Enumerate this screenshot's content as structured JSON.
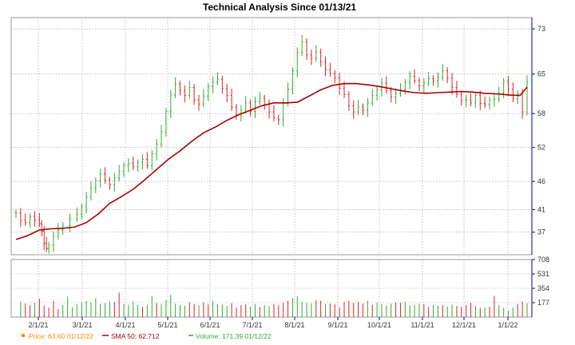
{
  "chart_data": {
    "type": "bar",
    "title": "Technical Analysis Since 01/13/21",
    "x_ticks": [
      "2/1/21",
      "3/1/21",
      "4/1/21",
      "5/1/21",
      "6/1/21",
      "7/1/21",
      "8/1/21",
      "9/1/21",
      "10/1/21",
      "11/1/21",
      "12/1/21",
      "1/1/22"
    ],
    "price_axis": {
      "ticks": [
        "73",
        "65",
        "58",
        "52",
        "46",
        "41",
        "37"
      ],
      "ylim": [
        33,
        75
      ]
    },
    "volume_axis": {
      "ticks": [
        "708",
        "531",
        "354",
        "177"
      ],
      "ylim": [
        0,
        708
      ]
    },
    "colors": {
      "up": "#33aa33",
      "down": "#dd2222",
      "sma": "#aa0000",
      "grid": "#999999",
      "axis": "#0000aa",
      "price_marker": "#ff8800"
    },
    "legend": [
      {
        "label": "Price: 63.60 01/12/22",
        "marker": "square",
        "color": "#ff8800"
      },
      {
        "label": "SMA 50: 62.712",
        "marker": "line",
        "color": "#aa0000"
      },
      {
        "label": "Volume: 171.39 01/12/22",
        "marker": "line",
        "color": "#33aa33"
      }
    ],
    "series": [
      {
        "name": "Price",
        "type": "ohlc",
        "points": [
          [
            0,
            40.4
          ],
          [
            2,
            39.1
          ],
          [
            4,
            38.7
          ],
          [
            6,
            39.8
          ],
          [
            8,
            39.2
          ],
          [
            10,
            38.5
          ],
          [
            11,
            37.2
          ],
          [
            12,
            35.0
          ],
          [
            13,
            34.1
          ],
          [
            14,
            34.7
          ],
          [
            16,
            36.3
          ],
          [
            18,
            37.4
          ],
          [
            20,
            38.2
          ],
          [
            23,
            39.4
          ],
          [
            26,
            40.2
          ],
          [
            28,
            41.5
          ],
          [
            30,
            43.2
          ],
          [
            32,
            44.8
          ],
          [
            34,
            46.1
          ],
          [
            36,
            47.3
          ],
          [
            38,
            46.2
          ],
          [
            40,
            45.4
          ],
          [
            42,
            46.6
          ],
          [
            44,
            47.7
          ],
          [
            46,
            48.8
          ],
          [
            48,
            49.2
          ],
          [
            50,
            48.6
          ],
          [
            52,
            49.3
          ],
          [
            54,
            49.9
          ],
          [
            56,
            48.8
          ],
          [
            58,
            50.9
          ],
          [
            60,
            52.6
          ],
          [
            62,
            54.8
          ],
          [
            64,
            58.4
          ],
          [
            66,
            61.3
          ],
          [
            68,
            63.2
          ],
          [
            70,
            62.1
          ],
          [
            72,
            61.2
          ],
          [
            74,
            62.6
          ],
          [
            76,
            60.4
          ],
          [
            78,
            59.7
          ],
          [
            80,
            61.1
          ],
          [
            82,
            62.8
          ],
          [
            84,
            63.6
          ],
          [
            86,
            64.1
          ],
          [
            88,
            62.4
          ],
          [
            90,
            61.2
          ],
          [
            92,
            59.1
          ],
          [
            94,
            57.8
          ],
          [
            96,
            58.6
          ],
          [
            98,
            59.9
          ],
          [
            100,
            58.4
          ],
          [
            102,
            60.1
          ],
          [
            104,
            60.7
          ],
          [
            106,
            59.6
          ],
          [
            108,
            58.3
          ],
          [
            110,
            57.2
          ],
          [
            112,
            56.9
          ],
          [
            114,
            59.8
          ],
          [
            116,
            62.3
          ],
          [
            118,
            65.6
          ],
          [
            120,
            68.8
          ],
          [
            122,
            70.7
          ],
          [
            124,
            68.4
          ],
          [
            126,
            67.8
          ],
          [
            128,
            68.9
          ],
          [
            130,
            67.2
          ],
          [
            132,
            65.8
          ],
          [
            134,
            65.1
          ],
          [
            136,
            64.3
          ],
          [
            138,
            62.5
          ],
          [
            140,
            61.4
          ],
          [
            142,
            59.4
          ],
          [
            144,
            58.3
          ],
          [
            146,
            59.2
          ],
          [
            148,
            58.6
          ],
          [
            150,
            59.9
          ],
          [
            152,
            61.2
          ],
          [
            154,
            62.2
          ],
          [
            156,
            63.4
          ],
          [
            158,
            62.1
          ],
          [
            160,
            60.9
          ],
          [
            162,
            61.6
          ],
          [
            164,
            62.2
          ],
          [
            166,
            63.5
          ],
          [
            168,
            64.6
          ],
          [
            170,
            63.8
          ],
          [
            172,
            62.9
          ],
          [
            174,
            63.4
          ],
          [
            176,
            64.2
          ],
          [
            178,
            63.8
          ],
          [
            180,
            64.4
          ],
          [
            182,
            65.6
          ],
          [
            184,
            64.3
          ],
          [
            186,
            62.6
          ],
          [
            188,
            61.4
          ],
          [
            190,
            60.3
          ],
          [
            192,
            60.4
          ],
          [
            194,
            59.9
          ],
          [
            196,
            61.2
          ],
          [
            198,
            59.8
          ],
          [
            200,
            59.6
          ],
          [
            202,
            60.4
          ],
          [
            204,
            60.6
          ],
          [
            206,
            61.6
          ],
          [
            208,
            63.7
          ],
          [
            210,
            62.3
          ],
          [
            212,
            60.6
          ],
          [
            214,
            61.5
          ],
          [
            216,
            58.3
          ],
          [
            218,
            63.6
          ]
        ]
      },
      {
        "name": "SMA 50",
        "type": "line",
        "values": [
          [
            0,
            35.7
          ],
          [
            5,
            36.4
          ],
          [
            10,
            37.4
          ],
          [
            15,
            37.6
          ],
          [
            20,
            37.7
          ],
          [
            25,
            37.9
          ],
          [
            30,
            38.7
          ],
          [
            35,
            40.2
          ],
          [
            40,
            42.1
          ],
          [
            45,
            43.3
          ],
          [
            50,
            44.6
          ],
          [
            55,
            46.3
          ],
          [
            60,
            48.1
          ],
          [
            65,
            49.9
          ],
          [
            70,
            51.4
          ],
          [
            75,
            53.1
          ],
          [
            80,
            54.6
          ],
          [
            85,
            55.6
          ],
          [
            90,
            56.8
          ],
          [
            95,
            57.8
          ],
          [
            100,
            58.6
          ],
          [
            105,
            59.4
          ],
          [
            110,
            59.9
          ],
          [
            115,
            59.9
          ],
          [
            120,
            60.0
          ],
          [
            125,
            61.1
          ],
          [
            130,
            62.2
          ],
          [
            135,
            63.0
          ],
          [
            140,
            63.3
          ],
          [
            145,
            63.3
          ],
          [
            150,
            63.1
          ],
          [
            155,
            62.8
          ],
          [
            160,
            62.4
          ],
          [
            165,
            62.0
          ],
          [
            170,
            61.7
          ],
          [
            175,
            61.6
          ],
          [
            180,
            61.7
          ],
          [
            185,
            61.8
          ],
          [
            190,
            61.9
          ],
          [
            195,
            61.8
          ],
          [
            200,
            61.6
          ],
          [
            205,
            61.5
          ],
          [
            210,
            61.3
          ],
          [
            215,
            61.2
          ],
          [
            218,
            62.7
          ]
        ]
      },
      {
        "name": "Volume",
        "type": "bar",
        "values": [
          [
            2,
            190
          ],
          [
            4,
            165
          ],
          [
            6,
            145
          ],
          [
            8,
            175
          ],
          [
            10,
            225
          ],
          [
            12,
            140
          ],
          [
            14,
            115
          ],
          [
            16,
            200
          ],
          [
            18,
            100
          ],
          [
            20,
            150
          ],
          [
            22,
            250
          ],
          [
            24,
            120
          ],
          [
            26,
            160
          ],
          [
            28,
            175
          ],
          [
            30,
            200
          ],
          [
            32,
            180
          ],
          [
            34,
            230
          ],
          [
            36,
            160
          ],
          [
            38,
            170
          ],
          [
            40,
            190
          ],
          [
            42,
            185
          ],
          [
            44,
            300
          ],
          [
            46,
            160
          ],
          [
            48,
            150
          ],
          [
            50,
            195
          ],
          [
            52,
            150
          ],
          [
            54,
            125
          ],
          [
            56,
            150
          ],
          [
            58,
            255
          ],
          [
            60,
            170
          ],
          [
            62,
            160
          ],
          [
            64,
            210
          ],
          [
            66,
            275
          ],
          [
            68,
            165
          ],
          [
            70,
            150
          ],
          [
            72,
            140
          ],
          [
            74,
            180
          ],
          [
            76,
            160
          ],
          [
            78,
            145
          ],
          [
            80,
            180
          ],
          [
            82,
            155
          ],
          [
            84,
            200
          ],
          [
            86,
            160
          ],
          [
            88,
            155
          ],
          [
            90,
            140
          ],
          [
            92,
            170
          ],
          [
            94,
            120
          ],
          [
            96,
            145
          ],
          [
            98,
            155
          ],
          [
            100,
            130
          ],
          [
            102,
            160
          ],
          [
            104,
            125
          ],
          [
            106,
            150
          ],
          [
            108,
            135
          ],
          [
            110,
            160
          ],
          [
            112,
            145
          ],
          [
            114,
            175
          ],
          [
            116,
            200
          ],
          [
            118,
            235
          ],
          [
            120,
            255
          ],
          [
            122,
            190
          ],
          [
            124,
            175
          ],
          [
            126,
            165
          ],
          [
            128,
            205
          ],
          [
            130,
            200
          ],
          [
            132,
            160
          ],
          [
            134,
            165
          ],
          [
            136,
            155
          ],
          [
            138,
            120
          ],
          [
            140,
            185
          ],
          [
            142,
            200
          ],
          [
            144,
            175
          ],
          [
            146,
            190
          ],
          [
            148,
            165
          ],
          [
            150,
            200
          ],
          [
            152,
            150
          ],
          [
            154,
            175
          ],
          [
            156,
            160
          ],
          [
            158,
            145
          ],
          [
            160,
            165
          ],
          [
            162,
            180
          ],
          [
            164,
            175
          ],
          [
            166,
            190
          ],
          [
            168,
            145
          ],
          [
            170,
            150
          ],
          [
            172,
            165
          ],
          [
            174,
            160
          ],
          [
            176,
            125
          ],
          [
            178,
            150
          ],
          [
            180,
            140
          ],
          [
            182,
            145
          ],
          [
            184,
            130
          ],
          [
            186,
            155
          ],
          [
            188,
            135
          ],
          [
            190,
            125
          ],
          [
            192,
            150
          ],
          [
            194,
            175
          ],
          [
            196,
            135
          ],
          [
            198,
            110
          ],
          [
            200,
            120
          ],
          [
            202,
            125
          ],
          [
            204,
            260
          ],
          [
            206,
            150
          ],
          [
            208,
            115
          ],
          [
            210,
            80
          ],
          [
            212,
            120
          ],
          [
            214,
            160
          ],
          [
            216,
            190
          ],
          [
            218,
            171.39
          ]
        ]
      }
    ]
  }
}
